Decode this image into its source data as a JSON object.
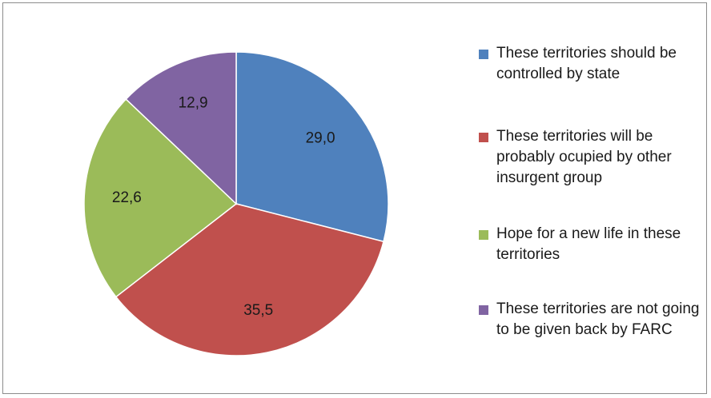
{
  "chart_data": {
    "type": "pie",
    "title": "",
    "legend_position": "right",
    "slices": [
      {
        "label": "These territories should be controlled by state",
        "value": 29.0,
        "value_label": "29,0",
        "color": "#4F81BD"
      },
      {
        "label": "These territories will be probably ocupied by other insurgent group",
        "value": 35.5,
        "value_label": "35,5",
        "color": "#C0504D"
      },
      {
        "label": "Hope for a new life in these territories",
        "value": 22.6,
        "value_label": "22,6",
        "color": "#9BBB59"
      },
      {
        "label": "These territories are not going to be given back by FARC",
        "value": 12.9,
        "value_label": "12,9",
        "color": "#8064A2"
      }
    ]
  }
}
